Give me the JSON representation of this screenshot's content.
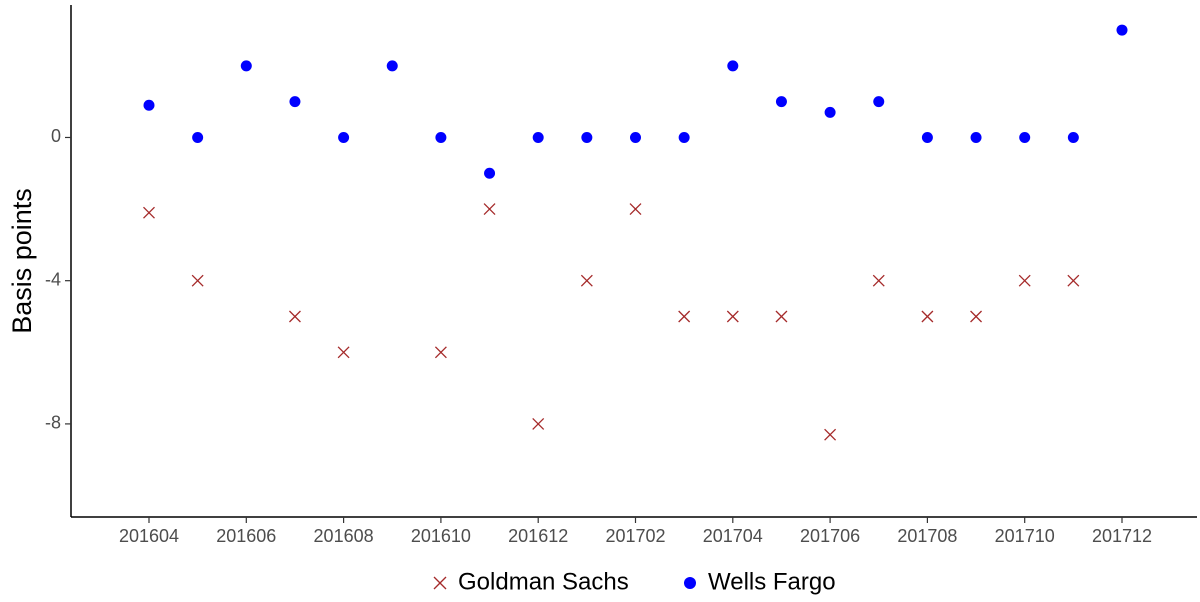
{
  "chart_data": {
    "type": "scatter",
    "ylabel": "Basis points",
    "categories": [
      "201604",
      null,
      "201606",
      null,
      "201608",
      null,
      "201610",
      null,
      "201612",
      null,
      "201702",
      null,
      "201704",
      null,
      "201706",
      null,
      "201708",
      null,
      "201710",
      null,
      "201712"
    ],
    "series": [
      {
        "name": "Goldman Sachs",
        "color": "#a52a2a",
        "marker": "x",
        "values": [
          -2.1,
          -4,
          null,
          -5,
          -6,
          null,
          -6,
          -2,
          -8,
          -4,
          -2,
          -5,
          -5,
          -5,
          -8.3,
          -4,
          -5,
          -5,
          -4,
          -4,
          null
        ]
      },
      {
        "name": "Wells Fargo",
        "color": "#0000ff",
        "marker": "circle",
        "values": [
          0.9,
          0,
          2,
          1,
          0,
          2,
          0,
          -1,
          0,
          0,
          0,
          0,
          2,
          1,
          0.7,
          1,
          0,
          0,
          0,
          0,
          3
        ]
      }
    ],
    "ylim": [
      -10.6,
      3.7
    ],
    "yticks": [
      0,
      -4,
      -8
    ],
    "legend": "bottom"
  }
}
